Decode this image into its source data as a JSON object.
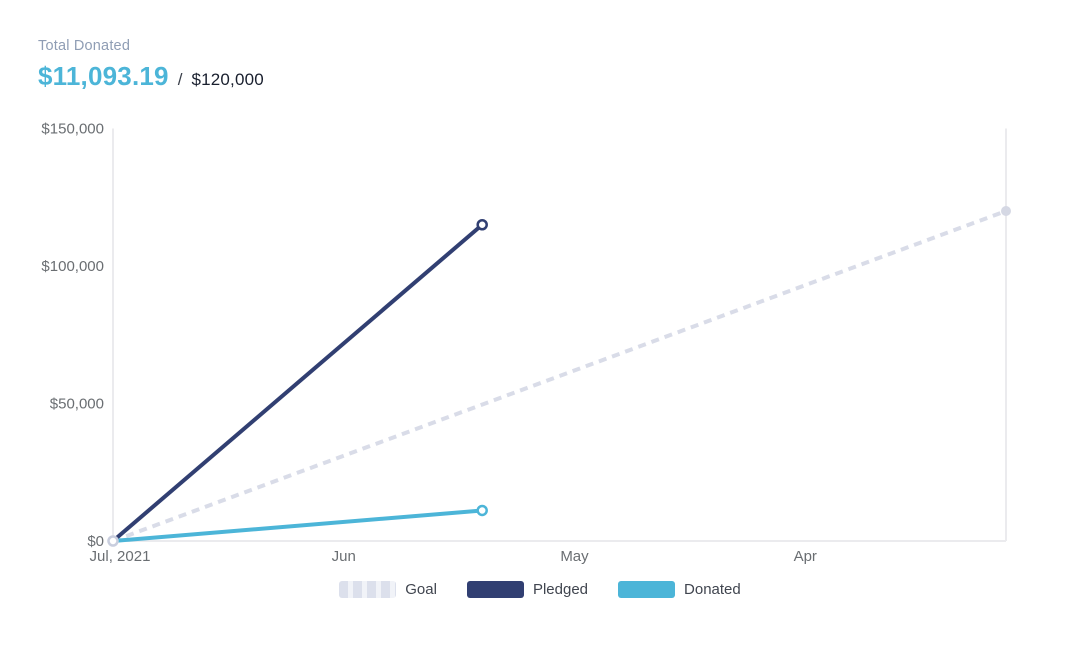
{
  "header": {
    "title": "Total Donated",
    "donated_amount": "$11,093.19",
    "separator": "/",
    "goal_amount": "$120,000"
  },
  "colors": {
    "goal_line": "#d9dce8",
    "goal_end_dot": "#d5d8e4",
    "origin_ring": "#c9cede",
    "pledged_line": "#313f72",
    "donated_line": "#4cb5d8",
    "axis_line": "#ebebee",
    "tick_label": "#6a6e72",
    "header_title": "#8f9db4",
    "header_amount": "#4cb5d8",
    "header_goal_text": "#191f2e",
    "legend_label": "#40454f"
  },
  "chart_data": {
    "type": "line",
    "title": "Total Donated",
    "xlabel": "",
    "ylabel": "",
    "grid": "off",
    "legend_position": "bottom-center",
    "x_axis_note": "months run in reverse chronological order left to right",
    "x_tick_labels": [
      "Jul, 2021",
      "Jun",
      "May",
      "Apr"
    ],
    "x_tick_positions": [
      0,
      1,
      2,
      3
    ],
    "x_range": [
      0,
      3.87
    ],
    "y_tick_labels": [
      "$0",
      "$50,000",
      "$100,000",
      "$150,000"
    ],
    "y_tick_values": [
      0,
      50000,
      100000,
      150000
    ],
    "y_range": [
      0,
      150000
    ],
    "series": [
      {
        "name": "Goal",
        "color": "#d9dce8",
        "line_style": "dashed",
        "start_marker": "open-circle",
        "end_marker": "filled-dot",
        "points": [
          {
            "x": 0,
            "y": 0
          },
          {
            "x": 3.87,
            "y": 120000
          }
        ]
      },
      {
        "name": "Pledged",
        "color": "#313f72",
        "line_style": "solid",
        "start_marker": "none",
        "end_marker": "open-circle",
        "points": [
          {
            "x": 0,
            "y": 0
          },
          {
            "x": 1.6,
            "y": 115000
          }
        ]
      },
      {
        "name": "Donated",
        "color": "#4cb5d8",
        "line_style": "solid",
        "start_marker": "none",
        "end_marker": "open-circle",
        "points": [
          {
            "x": 0,
            "y": 0
          },
          {
            "x": 1.6,
            "y": 11093.19
          }
        ]
      }
    ]
  }
}
